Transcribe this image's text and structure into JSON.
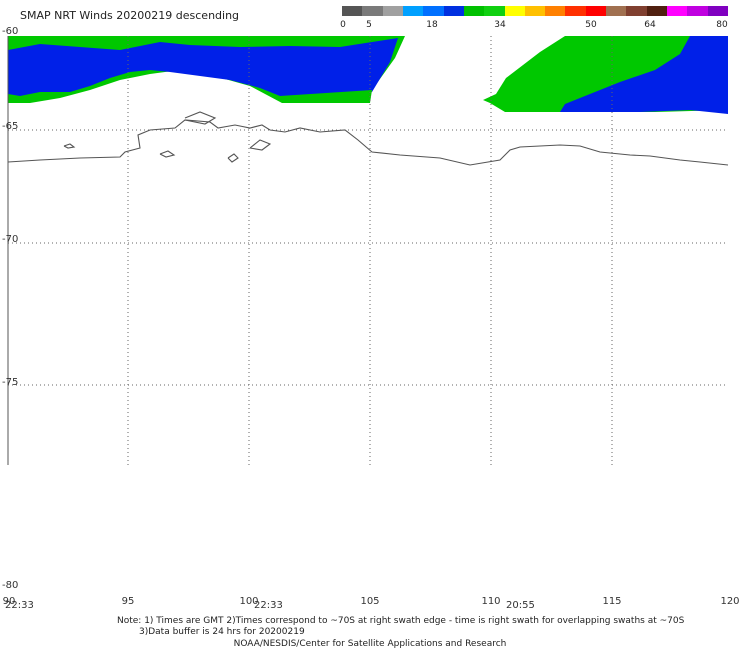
{
  "title": "SMAP NRT Winds  20200219 descending",
  "colorbar": {
    "segments": [
      {
        "color": "#555555"
      },
      {
        "color": "#7a7a7a"
      },
      {
        "color": "#a0a0a0"
      },
      {
        "color": "#00a0ff"
      },
      {
        "color": "#0070ff"
      },
      {
        "color": "#0030e0"
      },
      {
        "color": "#00c000"
      },
      {
        "color": "#10d010"
      },
      {
        "color": "#ffff00"
      },
      {
        "color": "#ffc000"
      },
      {
        "color": "#ff8000"
      },
      {
        "color": "#ff3000"
      },
      {
        "color": "#ff0000"
      },
      {
        "color": "#a07050"
      },
      {
        "color": "#804030"
      },
      {
        "color": "#502010"
      },
      {
        "color": "#ff00ff"
      },
      {
        "color": "#c000e0"
      },
      {
        "color": "#8000c0"
      }
    ],
    "labels": [
      "0",
      "5",
      "18",
      "34",
      "50",
      "64",
      "80"
    ]
  },
  "lat_labels": [
    "-60",
    "-65",
    "-70",
    "-75",
    "-80"
  ],
  "lon_labels": [
    "90",
    "95",
    "100",
    "105",
    "110",
    "115",
    "120"
  ],
  "times": [
    "22:33",
    "22:33",
    "20:55"
  ],
  "note_line1": "Note: 1) Times are GMT 2)Times correspond to ~70S at right swath edge - time is right swath for overlapping swaths at ~70S",
  "note_line2": "3)Data buffer is 24 hrs for 20200219",
  "credit": "NOAA/NESDIS/Center for Satellite Applications and Research"
}
